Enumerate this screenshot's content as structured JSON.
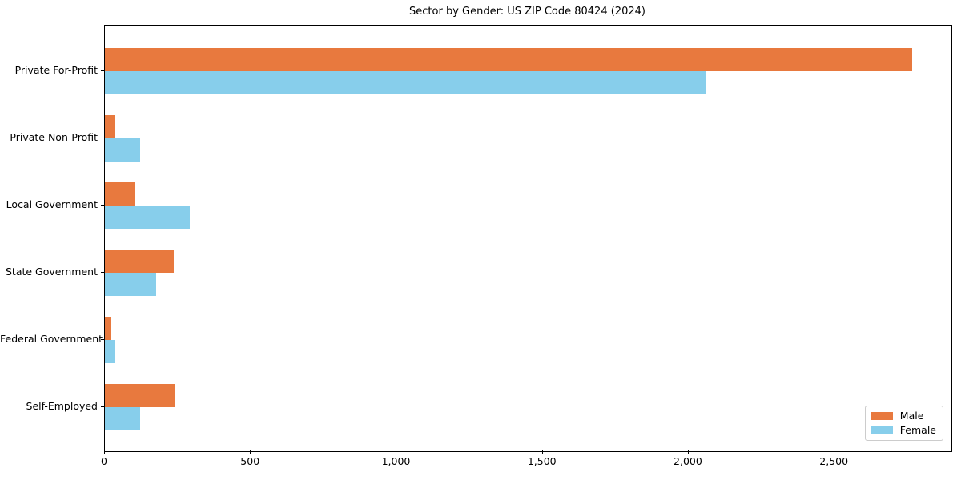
{
  "chart_data": {
    "type": "bar",
    "orientation": "horizontal",
    "title": "Sector by Gender: US ZIP Code 80424 (2024)",
    "categories": [
      "Private For-Profit",
      "Private Non-Profit",
      "Local Government",
      "State Government",
      "Federal Government",
      "Self-Employed"
    ],
    "series": [
      {
        "name": "Male",
        "color": "#E8793E",
        "values": [
          2765,
          35,
          105,
          235,
          20,
          240
        ]
      },
      {
        "name": "Female",
        "color": "#87CEEB",
        "values": [
          2060,
          120,
          290,
          175,
          35,
          120
        ]
      }
    ],
    "xlabel": "",
    "ylabel": "",
    "xlim": [
      0,
      2900
    ],
    "x_ticks": [
      0,
      500,
      1000,
      1500,
      2000,
      2500
    ],
    "x_tick_labels": [
      "0",
      "500",
      "1,000",
      "1,500",
      "2,000",
      "2,500"
    ],
    "grid": false,
    "legend_position": "lower right",
    "colors": {
      "male": "#E8793E",
      "female": "#87CEEB",
      "axis": "#000000",
      "legend_border": "#cccccc",
      "background": "#ffffff"
    }
  }
}
